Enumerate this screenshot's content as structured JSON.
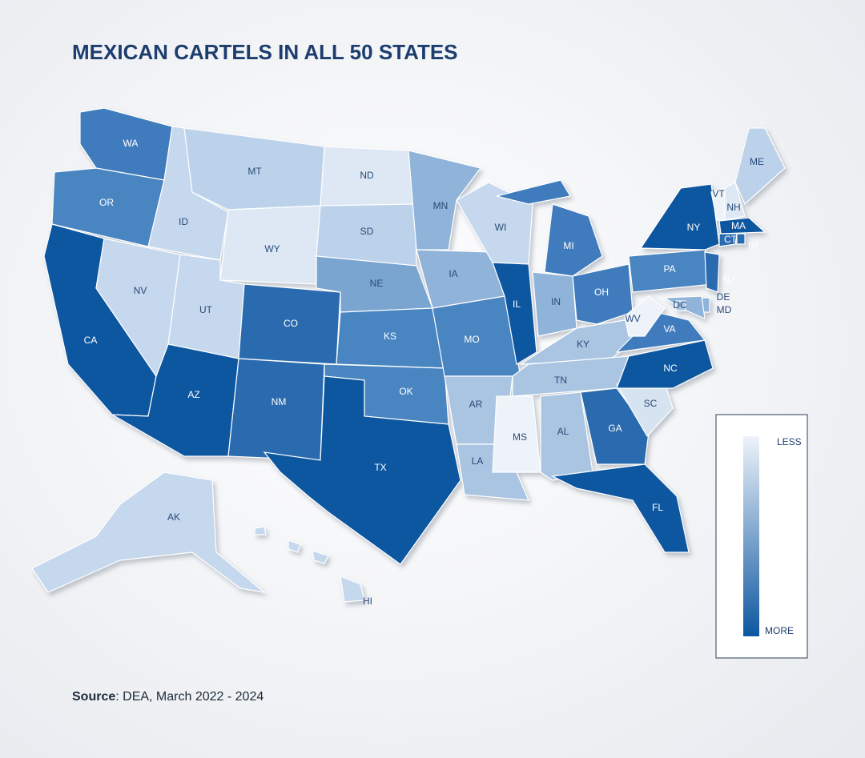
{
  "title": "MEXICAN CARTELS IN ALL 50 STATES",
  "source": {
    "label": "Source",
    "text": ": DEA, March 2022 - 2024"
  },
  "states": [
    {
      "label": "WA",
      "color": "#3f7bbd"
    },
    {
      "label": "OR",
      "color": "#4a85c0"
    },
    {
      "label": "CA",
      "color": "#0d57a0"
    },
    {
      "label": "NV",
      "color": "#c5d8ed"
    },
    {
      "label": "ID",
      "color": "#c5d8ed"
    },
    {
      "label": "MT",
      "color": "#bcd2ea"
    },
    {
      "label": "WY",
      "color": "#dde8f4"
    },
    {
      "label": "UT",
      "color": "#c5d8ed"
    },
    {
      "label": "AZ",
      "color": "#0d57a0"
    },
    {
      "label": "CO",
      "color": "#2a6aae"
    },
    {
      "label": "NM",
      "color": "#2a6aae"
    },
    {
      "label": "ND",
      "color": "#dde8f4"
    },
    {
      "label": "SD",
      "color": "#bcd2ea"
    },
    {
      "label": "NE",
      "color": "#7aa5d0"
    },
    {
      "label": "KS",
      "color": "#4a85c0"
    },
    {
      "label": "OK",
      "color": "#4a85c0"
    },
    {
      "label": "TX",
      "color": "#0d57a0"
    },
    {
      "label": "MN",
      "color": "#8fb3d9"
    },
    {
      "label": "IA",
      "color": "#8fb3d9"
    },
    {
      "label": "MO",
      "color": "#4a85c0"
    },
    {
      "label": "AR",
      "color": "#a9c5e2"
    },
    {
      "label": "LA",
      "color": "#a9c5e2"
    },
    {
      "label": "WI",
      "color": "#c5d8ed"
    },
    {
      "label": "IL",
      "color": "#0d57a0"
    },
    {
      "label": "MI",
      "color": "#3f7bbd"
    },
    {
      "label": "IN",
      "color": "#8fb3d9"
    },
    {
      "label": "OH",
      "color": "#3f7bbd"
    },
    {
      "label": "KY",
      "color": "#a9c5e2"
    },
    {
      "label": "TN",
      "color": "#a9c5e2"
    },
    {
      "label": "MS",
      "color": "#eef3f9"
    },
    {
      "label": "AL",
      "color": "#a9c5e2"
    },
    {
      "label": "GA",
      "color": "#2a6aae"
    },
    {
      "label": "FL",
      "color": "#0d57a0"
    },
    {
      "label": "SC",
      "color": "#d6e4f2"
    },
    {
      "label": "NC",
      "color": "#0d57a0"
    },
    {
      "label": "VA",
      "color": "#3f7bbd"
    },
    {
      "label": "WV",
      "color": "#eef3f9"
    },
    {
      "label": "PA",
      "color": "#4a85c0"
    },
    {
      "label": "NY",
      "color": "#0d57a0"
    },
    {
      "label": "NJ",
      "color": "#2a6aae"
    },
    {
      "label": "DE",
      "color": "#8fb3d9"
    },
    {
      "label": "MD",
      "color": "#8fb3d9"
    },
    {
      "label": "DC",
      "color": "#a9c5e2"
    },
    {
      "label": "VT",
      "color": "#eef3f9"
    },
    {
      "label": "NH",
      "color": "#dde8f4"
    },
    {
      "label": "ME",
      "color": "#bcd2ea"
    },
    {
      "label": "MA",
      "color": "#0d57a0"
    },
    {
      "label": "CT",
      "color": "#2a6aae"
    },
    {
      "label": "RI",
      "color": "#2a6aae"
    },
    {
      "label": "AK",
      "color": "#c5d8ed"
    },
    {
      "label": "HI",
      "color": "#c5d8ed"
    }
  ],
  "legend": {
    "low": "LESS",
    "high": "MORE",
    "colors": [
      "#eef3f9",
      "#0d57a0"
    ]
  }
}
